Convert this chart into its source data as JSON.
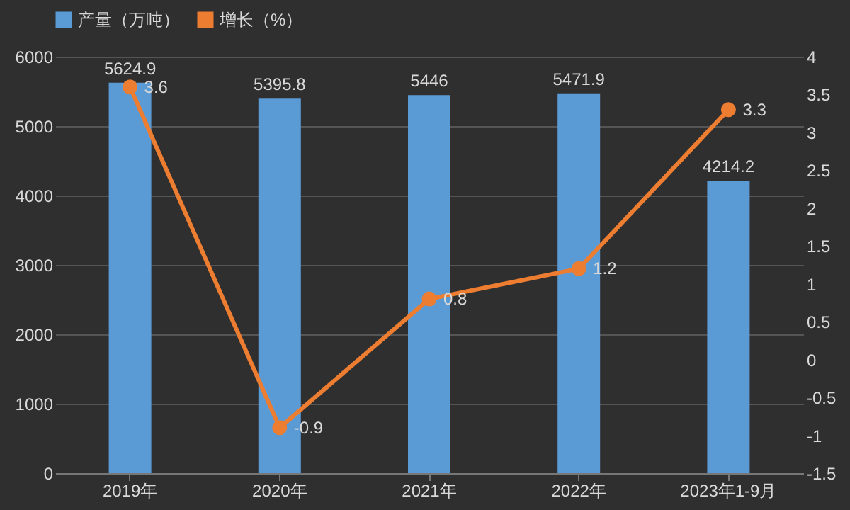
{
  "chart_data": {
    "type": "bar",
    "categories": [
      "2019年",
      "2020年",
      "2021年",
      "2022年",
      "2023年1-9月"
    ],
    "series": [
      {
        "name": "产量（万吨）",
        "color": "#5b9bd5",
        "values": [
          5624.9,
          5395.8,
          5446,
          5471.9,
          4214.2
        ]
      },
      {
        "name": "增长（%）",
        "color": "#ed7d31",
        "type": "line",
        "axis": "y2",
        "values": [
          3.6,
          -0.9,
          0.8,
          1.2,
          3.3
        ]
      }
    ],
    "ylim": [
      0,
      6000
    ],
    "yticks": [
      0,
      1000,
      2000,
      3000,
      4000,
      5000,
      6000
    ],
    "y2lim": [
      -1.5,
      4
    ],
    "y2ticks": [
      -1.5,
      -1,
      -0.5,
      0,
      0.5,
      1,
      1.5,
      2,
      2.5,
      3,
      3.5,
      4
    ],
    "grid": "y",
    "legend": "top",
    "data_labels": true,
    "marker": "circle"
  }
}
